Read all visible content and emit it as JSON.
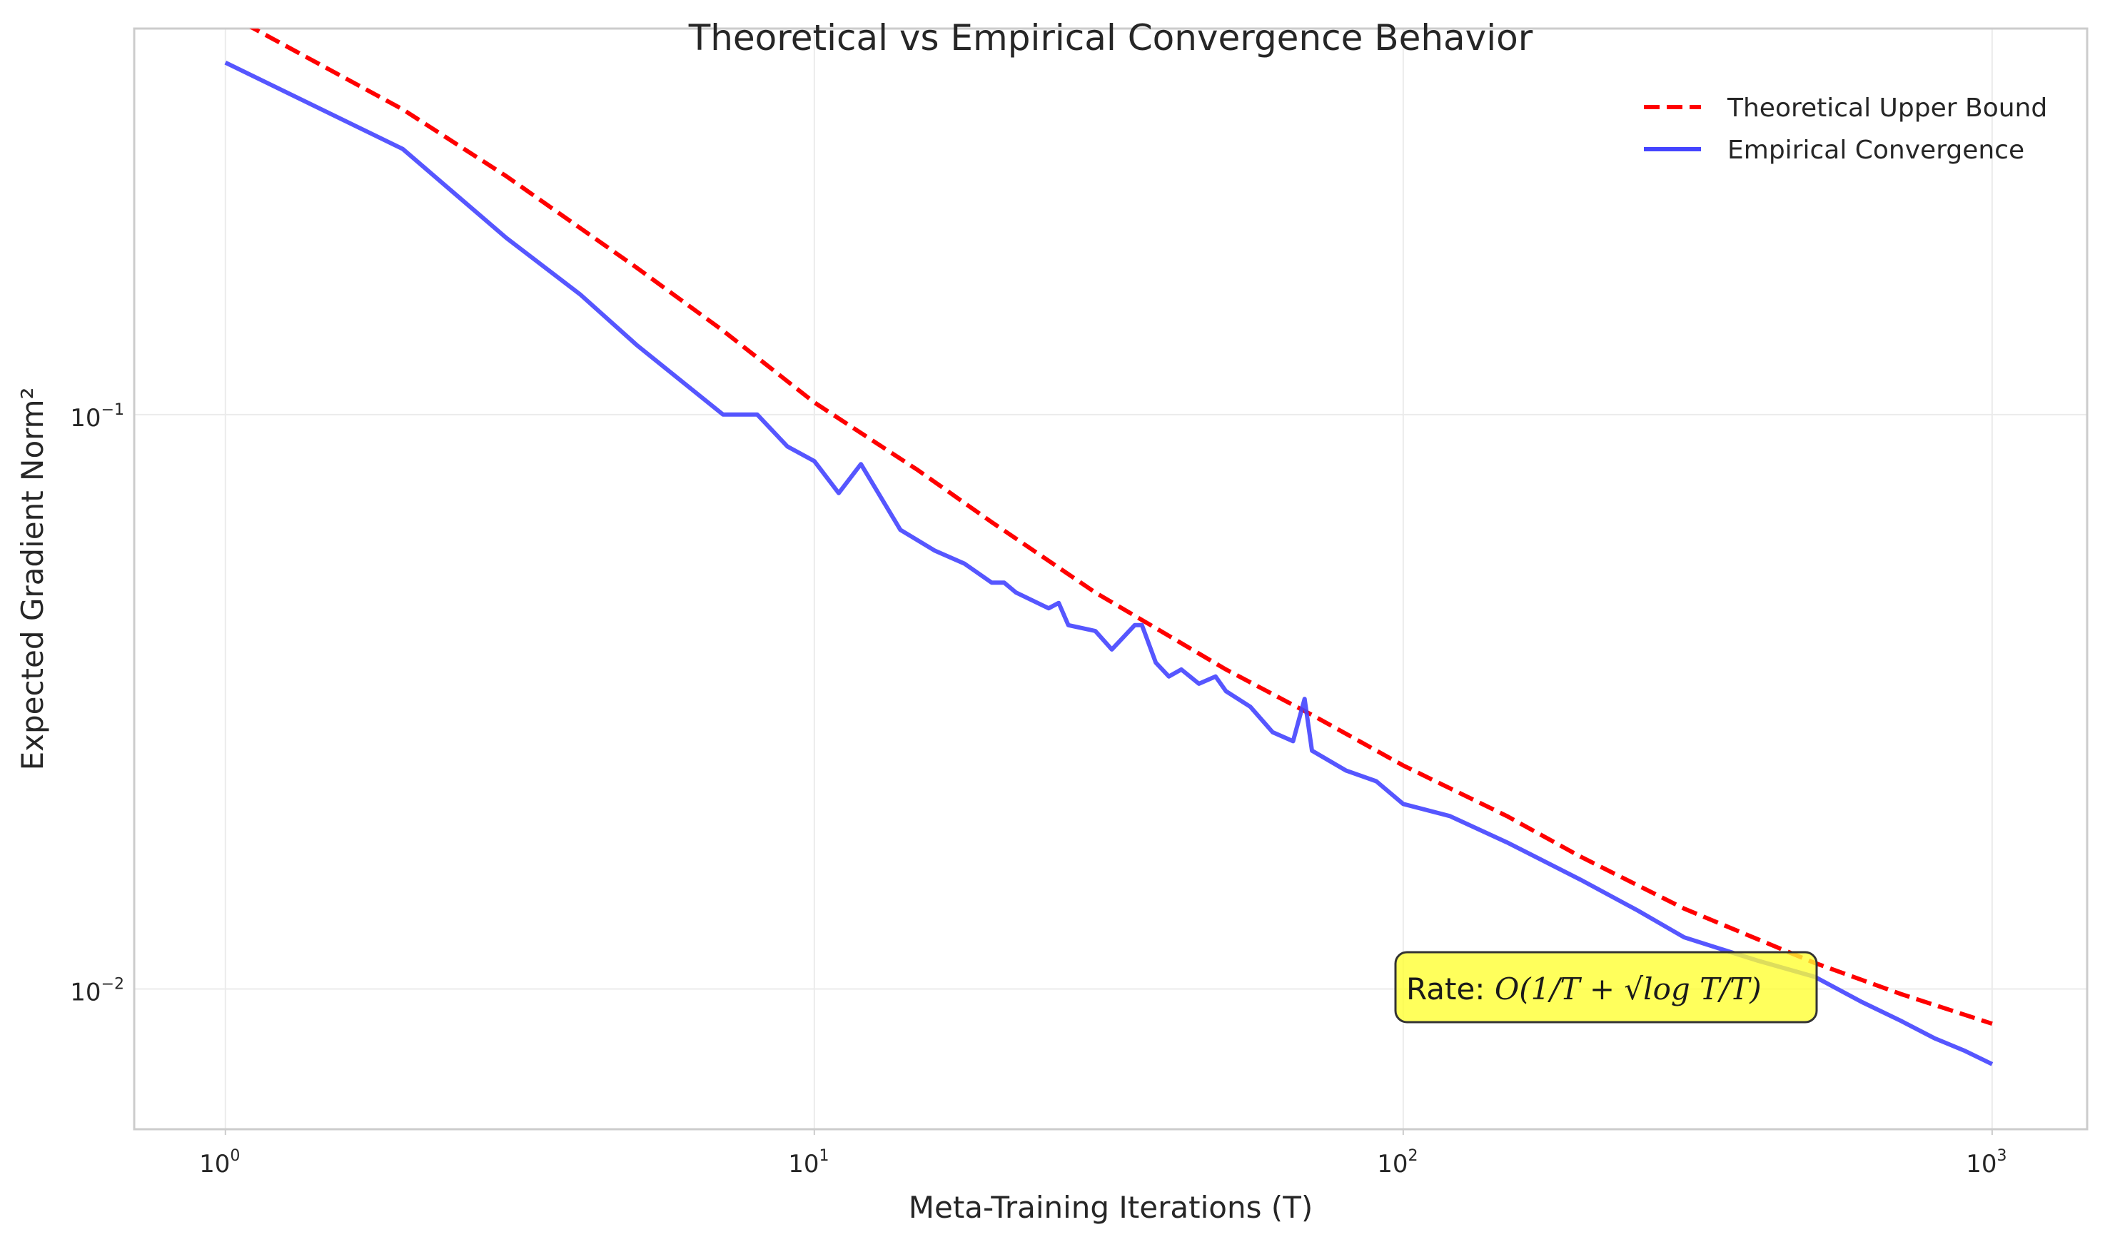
{
  "chart_data": {
    "type": "line",
    "title": "Theoretical vs Empirical Convergence Behavior",
    "xlabel": "Meta-Training Iterations (T)",
    "ylabel": "Expected Gradient Norm²",
    "xscale": "log",
    "yscale": "log",
    "xlim": [
      0.7,
      1450
    ],
    "ylim": [
      0.0057,
      0.47
    ],
    "x_ticks": [
      {
        "value": 1,
        "base": "10",
        "exp": "0"
      },
      {
        "value": 10,
        "base": "10",
        "exp": "1"
      },
      {
        "value": 100,
        "base": "10",
        "exp": "2"
      },
      {
        "value": 1000,
        "base": "10",
        "exp": "3"
      }
    ],
    "y_ticks": [
      {
        "value": 0.1,
        "base": "10",
        "exp": "−1"
      },
      {
        "value": 0.01,
        "base": "10",
        "exp": "−2"
      }
    ],
    "grid": true,
    "legend_position": "top-right",
    "series": [
      {
        "name": "Theoretical Upper Bound",
        "style": "dashed",
        "color": "#ff0000",
        "x": [
          1,
          2,
          3,
          5,
          7,
          10,
          15,
          20,
          30,
          50,
          70,
          100,
          150,
          200,
          300,
          500,
          700,
          1000
        ],
        "y": [
          0.5,
          0.34,
          0.26,
          0.18,
          0.14,
          0.105,
          0.08,
          0.065,
          0.049,
          0.036,
          0.03,
          0.0245,
          0.02,
          0.017,
          0.0138,
          0.0111,
          0.0098,
          0.0087
        ]
      },
      {
        "name": "Empirical Convergence",
        "style": "solid",
        "color": "#4444ff",
        "x": [
          1,
          2,
          3,
          4,
          5,
          7,
          8,
          9,
          10,
          11,
          12,
          14,
          16,
          18,
          20,
          21,
          22,
          25,
          26,
          27,
          30,
          32,
          35,
          36,
          38,
          40,
          42,
          45,
          48,
          50,
          55,
          60,
          65,
          68,
          70,
          80,
          90,
          100,
          120,
          150,
          200,
          250,
          300,
          400,
          500,
          600,
          700,
          800,
          900,
          1000
        ],
        "y": [
          0.41,
          0.29,
          0.203,
          0.162,
          0.132,
          0.1,
          0.1,
          0.088,
          0.083,
          0.073,
          0.082,
          0.063,
          0.058,
          0.055,
          0.051,
          0.051,
          0.049,
          0.046,
          0.047,
          0.043,
          0.042,
          0.039,
          0.043,
          0.043,
          0.037,
          0.035,
          0.036,
          0.034,
          0.035,
          0.033,
          0.031,
          0.028,
          0.027,
          0.032,
          0.026,
          0.024,
          0.023,
          0.021,
          0.02,
          0.018,
          0.0155,
          0.0137,
          0.0123,
          0.0112,
          0.0105,
          0.0095,
          0.0088,
          0.0082,
          0.0078,
          0.0074
        ]
      }
    ],
    "annotation": {
      "prefix": "Rate: ",
      "formula": "O(1/T + √log T/T)",
      "x": 100,
      "y": 0.0101,
      "box_color": "#ffff33"
    }
  }
}
